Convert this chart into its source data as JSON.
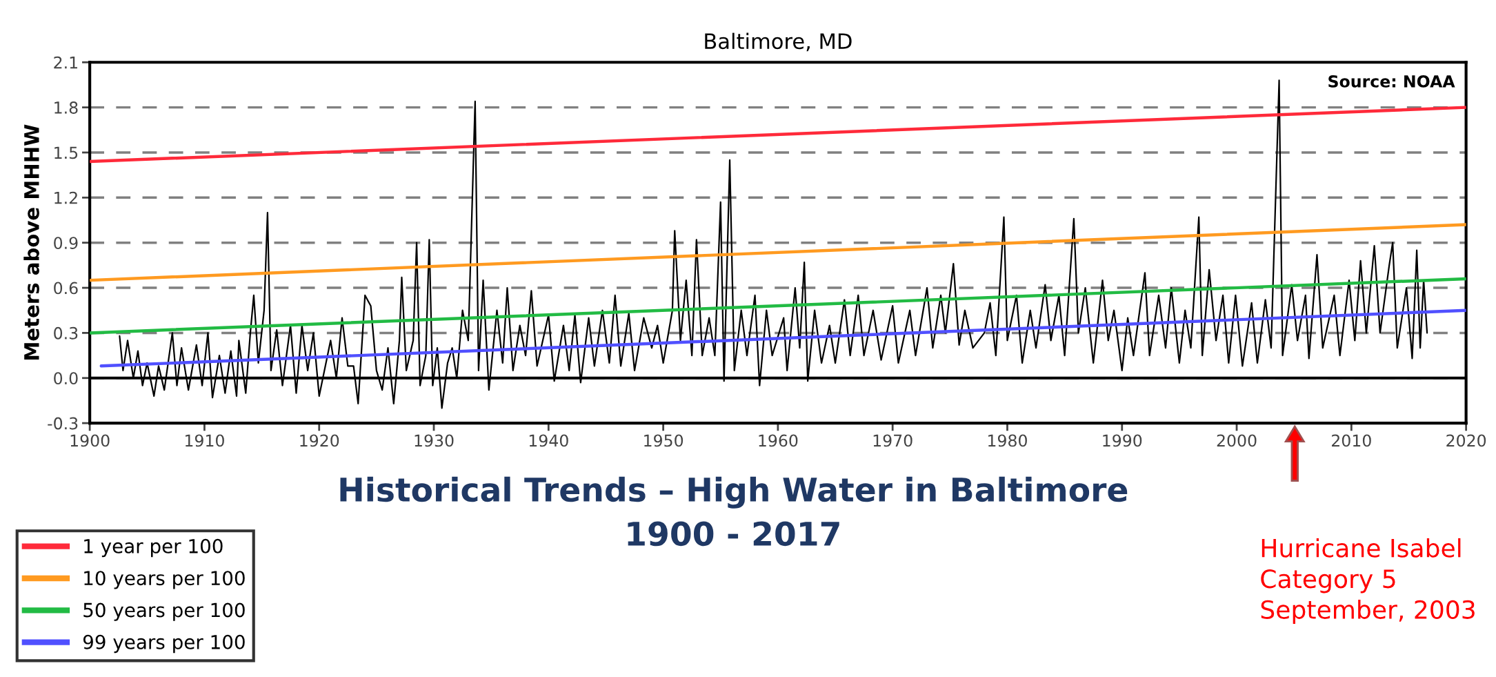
{
  "chart_data": {
    "type": "line",
    "title": "Baltimore, MD",
    "subtitle": "Historical Trends – High Water in Baltimore\n1900 - 2017",
    "ylabel": "Meters above MHHW",
    "annotations": [
      "Source: NOAA",
      "Hurricane Isabel\nCategory 5\nSeptember, 2003"
    ],
    "xlim": [
      1900,
      2020
    ],
    "xticks": [
      1900,
      1910,
      1920,
      1930,
      1940,
      1950,
      1960,
      1970,
      1980,
      1990,
      2000,
      2010,
      2020
    ],
    "ylim": [
      -0.3,
      2.1
    ],
    "yticks": [
      -0.3,
      {
        "value": 0,
        "label": "0.0"
      },
      0.3,
      0.6,
      0.9,
      1.2,
      1.5,
      1.8,
      2.1
    ],
    "grid": "y",
    "legend": "bottom left",
    "ref_lines": [
      {
        "axis": "y",
        "value": 0,
        "color": "#000000",
        "line_style": "solid"
      }
    ],
    "series": [
      {
        "color": "#000000",
        "x": [
          1902.6,
          1902.9,
          1903.3,
          1903.8,
          1904.2,
          1904.6,
          1905.0,
          1905.6,
          1906.0,
          1906.5,
          1907.2,
          1907.6,
          1908.0,
          1908.6,
          1909.3,
          1909.8,
          1910.3,
          1910.7,
          1911.3,
          1911.8,
          1912.3,
          1912.8,
          1913.0,
          1913.6,
          1914.0,
          1914.3,
          1914.7,
          1915.2,
          1915.5,
          1915.8,
          1916.3,
          1916.8,
          1917.5,
          1918.0,
          1918.5,
          1919.0,
          1919.5,
          1920.0,
          1921.0,
          1921.5,
          1922.0,
          1922.5,
          1923.0,
          1923.4,
          1924.0,
          1924.5,
          1925.0,
          1925.5,
          1926.0,
          1926.5,
          1927.0,
          1927.2,
          1927.6,
          1928.2,
          1928.5,
          1928.8,
          1929.3,
          1929.6,
          1929.9,
          1930.3,
          1930.7,
          1931.2,
          1931.6,
          1932.0,
          1932.5,
          1933.0,
          1933.6,
          1933.9,
          1934.3,
          1934.8,
          1935.5,
          1936.0,
          1936.4,
          1936.9,
          1937.5,
          1938.0,
          1938.5,
          1939.0,
          1940.0,
          1940.5,
          1941.3,
          1941.8,
          1942.3,
          1942.8,
          1943.5,
          1944.0,
          1944.7,
          1945.3,
          1945.8,
          1946.3,
          1947.0,
          1947.5,
          1948.3,
          1949.0,
          1949.5,
          1950.0,
          1950.8,
          1951.0,
          1951.5,
          1952.0,
          1952.5,
          1952.9,
          1953.4,
          1954.0,
          1954.5,
          1955.0,
          1955.3,
          1955.8,
          1956.2,
          1956.8,
          1957.3,
          1958.0,
          1958.4,
          1959.0,
          1959.5,
          1960.5,
          1960.8,
          1961.5,
          1961.9,
          1962.3,
          1962.6,
          1963.2,
          1963.8,
          1964.5,
          1965.0,
          1965.8,
          1966.3,
          1967.0,
          1967.5,
          1968.3,
          1969.0,
          1970.0,
          1970.5,
          1971.5,
          1972.0,
          1973.0,
          1973.5,
          1974.2,
          1974.6,
          1975.3,
          1975.8,
          1976.3,
          1977.0,
          1978.0,
          1978.5,
          1979.0,
          1979.7,
          1980.0,
          1980.8,
          1981.3,
          1982.0,
          1982.5,
          1983.3,
          1983.8,
          1984.5,
          1985.0,
          1985.8,
          1986.2,
          1986.8,
          1987.5,
          1988.3,
          1988.8,
          1989.3,
          1990.0,
          1990.5,
          1991.0,
          1992.0,
          1992.4,
          1993.2,
          1993.8,
          1994.3,
          1995.0,
          1995.5,
          1996.0,
          1996.7,
          1997.0,
          1997.6,
          1998.2,
          1998.8,
          1999.3,
          1999.9,
          2000.5,
          2001.3,
          2001.8,
          2002.5,
          2003.0,
          2003.7,
          2004.0,
          2004.8,
          2005.3,
          2006.0,
          2006.3,
          2007.0,
          2007.5,
          2008.5,
          2009.0,
          2009.8,
          2010.3,
          2010.8,
          2011.3,
          2012.0,
          2012.5,
          2013.3,
          2013.6,
          2014.0,
          2014.8,
          2015.3,
          2015.7,
          2016.0,
          2016.3,
          2016.6
        ],
        "values": [
          0.28,
          0.05,
          0.25,
          0.0,
          0.18,
          -0.05,
          0.1,
          -0.12,
          0.08,
          -0.08,
          0.3,
          -0.05,
          0.2,
          -0.08,
          0.22,
          -0.05,
          0.3,
          -0.13,
          0.15,
          -0.1,
          0.18,
          -0.12,
          0.25,
          -0.1,
          0.3,
          0.55,
          0.1,
          0.45,
          1.1,
          0.05,
          0.32,
          -0.05,
          0.35,
          -0.1,
          0.35,
          0.05,
          0.3,
          -0.12,
          0.25,
          0.0,
          0.4,
          0.08,
          0.08,
          -0.17,
          0.55,
          0.48,
          0.05,
          -0.08,
          0.2,
          -0.17,
          0.25,
          0.67,
          0.05,
          0.25,
          0.9,
          -0.05,
          0.15,
          0.92,
          -0.05,
          0.2,
          -0.2,
          0.1,
          0.2,
          0.0,
          0.45,
          0.25,
          1.84,
          0.05,
          0.65,
          -0.08,
          0.45,
          0.1,
          0.6,
          0.05,
          0.35,
          0.15,
          0.58,
          0.08,
          0.42,
          -0.02,
          0.35,
          0.05,
          0.42,
          -0.03,
          0.4,
          0.08,
          0.45,
          0.1,
          0.55,
          0.08,
          0.43,
          0.05,
          0.4,
          0.2,
          0.35,
          0.1,
          0.45,
          0.98,
          0.25,
          0.65,
          0.15,
          0.92,
          0.15,
          0.4,
          0.15,
          1.17,
          -0.02,
          1.45,
          0.05,
          0.45,
          0.15,
          0.55,
          -0.05,
          0.45,
          0.15,
          0.4,
          0.05,
          0.6,
          0.2,
          0.77,
          -0.02,
          0.45,
          0.1,
          0.35,
          0.1,
          0.52,
          0.15,
          0.55,
          0.15,
          0.45,
          0.12,
          0.48,
          0.1,
          0.45,
          0.15,
          0.6,
          0.2,
          0.55,
          0.3,
          0.76,
          0.22,
          0.45,
          0.2,
          0.3,
          0.5,
          0.15,
          1.07,
          0.25,
          0.55,
          0.1,
          0.45,
          0.2,
          0.62,
          0.25,
          0.55,
          0.15,
          1.06,
          0.3,
          0.6,
          0.1,
          0.65,
          0.25,
          0.45,
          0.05,
          0.4,
          0.15,
          0.7,
          0.15,
          0.55,
          0.2,
          0.6,
          0.1,
          0.45,
          0.2,
          1.07,
          0.15,
          0.72,
          0.25,
          0.55,
          0.1,
          0.55,
          0.08,
          0.5,
          0.1,
          0.52,
          0.2,
          1.98,
          0.15,
          0.62,
          0.25,
          0.55,
          0.13,
          0.82,
          0.2,
          0.55,
          0.15,
          0.65,
          0.25,
          0.78,
          0.3,
          0.88,
          0.3,
          0.75,
          0.9,
          0.2,
          0.6,
          0.13,
          0.85,
          0.2,
          0.65,
          0.3
        ]
      },
      {
        "name": "1 year per 100",
        "color": "#ff2a3a",
        "x": [
          1900,
          2020
        ],
        "values": [
          1.44,
          1.8
        ]
      },
      {
        "name": "10 years per 100",
        "color": "#ff9a20",
        "x": [
          1900,
          2020
        ],
        "values": [
          0.65,
          1.02
        ]
      },
      {
        "name": "50 years per 100",
        "color": "#22bb44",
        "x": [
          1900,
          2020
        ],
        "values": [
          0.3,
          0.66
        ]
      },
      {
        "name": "99 years per 100",
        "color": "#5050ff",
        "x": [
          1901,
          2020
        ],
        "values": [
          0.08,
          0.45
        ]
      }
    ]
  }
}
